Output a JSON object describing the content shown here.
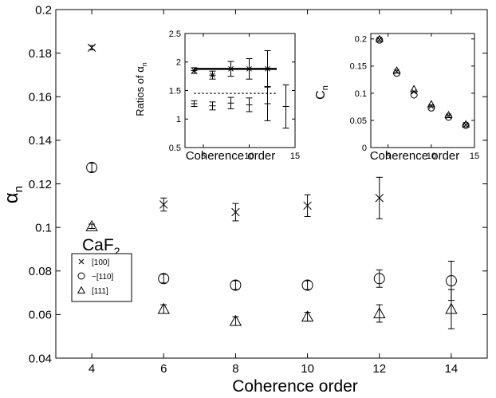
{
  "chart_data": [
    {
      "id": "main",
      "type": "scatter",
      "title": "",
      "xlabel": "Coherence order",
      "ylabel_main": "α",
      "ylabel_sub": "n",
      "xlim": [
        3,
        15
      ],
      "ylim": [
        0.04,
        0.2
      ],
      "xticks": [
        4,
        6,
        8,
        10,
        12,
        14
      ],
      "yticks": [
        0.04,
        0.06,
        0.08,
        0.1,
        0.12,
        0.14,
        0.16,
        0.18,
        0.2
      ],
      "ytick_labels": [
        "0.04",
        "0.06",
        "0.08",
        "0.1",
        "0.12",
        "0.14",
        "0.16",
        "0.18",
        "0.2"
      ],
      "series": [
        {
          "name": "[100]",
          "marker": "x",
          "points": [
            [
              4,
              0.1825,
              0.001
            ],
            [
              6,
              0.1105,
              0.003
            ],
            [
              8,
              0.107,
              0.004
            ],
            [
              10,
              0.11,
              0.005
            ],
            [
              12,
              0.1135,
              0.0095
            ]
          ]
        },
        {
          "name": "~[110]",
          "marker": "circle",
          "points": [
            [
              4,
              0.1275,
              0.002
            ],
            [
              6,
              0.0765,
              0.002
            ],
            [
              8,
              0.0735,
              0.002
            ],
            [
              10,
              0.0735,
              0.002
            ],
            [
              12,
              0.0765,
              0.004
            ],
            [
              14,
              0.0755,
              0.009
            ]
          ]
        },
        {
          "name": "[111]",
          "marker": "triangle",
          "points": [
            [
              4,
              0.1005,
              0.001
            ],
            [
              6,
              0.0625,
              0.002
            ],
            [
              8,
              0.057,
              0.002
            ],
            [
              10,
              0.059,
              0.002
            ],
            [
              12,
              0.0605,
              0.004
            ],
            [
              14,
              0.0625,
              0.009
            ]
          ]
        }
      ],
      "annotation_main": "CaF",
      "annotation_sub": "2",
      "legend_position": "left"
    },
    {
      "id": "inset1",
      "type": "scatter",
      "title": "",
      "xlabel": "Coherence order",
      "ylabel_main": "Ratios of α",
      "ylabel_sub": "n",
      "xlim": [
        3,
        15
      ],
      "ylim": [
        0.5,
        2.5
      ],
      "xticks": [
        5,
        10,
        15
      ],
      "yticks": [
        0.5,
        1,
        1.5,
        2,
        2.5
      ],
      "ytick_labels": [
        "0.5",
        "1",
        "1.5",
        "2",
        "2.5"
      ],
      "series": [
        {
          "marker": "star",
          "points": [
            [
              4,
              1.85,
              0.05
            ],
            [
              6,
              1.77,
              0.07
            ],
            [
              8,
              1.88,
              0.13
            ],
            [
              10,
              1.88,
              0.18
            ],
            [
              12,
              1.88,
              0.32
            ]
          ]
        },
        {
          "marker": "plus",
          "points": [
            [
              4,
              1.27,
              0.05
            ],
            [
              6,
              1.23,
              0.07
            ],
            [
              8,
              1.28,
              0.1
            ],
            [
              10,
              1.25,
              0.12
            ],
            [
              12,
              1.27,
              0.3
            ],
            [
              14,
              1.22,
              0.38
            ]
          ]
        }
      ],
      "hlines": [
        {
          "y": 1.88,
          "style": "solid",
          "x0": 4,
          "x1": 13
        },
        {
          "y": 1.45,
          "style": "dotted",
          "x0": 4,
          "x1": 13
        }
      ]
    },
    {
      "id": "inset2",
      "type": "scatter",
      "title": "",
      "xlabel": "Coherence order",
      "ylabel_main": "C",
      "ylabel_sub": "n",
      "xlim": [
        3,
        15
      ],
      "ylim": [
        0,
        0.21
      ],
      "xticks": [
        5,
        10,
        15
      ],
      "yticks": [
        0,
        0.05,
        0.1,
        0.15,
        0.2
      ],
      "ytick_labels": [
        "0",
        "0.05",
        "0.1",
        "0.15",
        "0.2"
      ],
      "series": [
        {
          "marker": "circle",
          "points": [
            [
              4,
              0.198
            ],
            [
              6,
              0.137
            ],
            [
              8,
              0.097
            ],
            [
              10,
              0.073
            ],
            [
              12,
              0.056
            ],
            [
              14,
              0.041
            ]
          ]
        },
        {
          "marker": "triangle",
          "points": [
            [
              4,
              0.2
            ],
            [
              6,
              0.142
            ],
            [
              8,
              0.108
            ],
            [
              10,
              0.08
            ],
            [
              12,
              0.06
            ],
            [
              14,
              0.043
            ]
          ]
        },
        {
          "marker": "x",
          "points": [
            [
              4,
              0.199
            ],
            [
              6,
              0.14
            ],
            [
              8,
              0.103
            ],
            [
              10,
              0.076
            ],
            [
              12,
              0.058
            ],
            [
              14,
              0.042
            ]
          ]
        }
      ]
    }
  ]
}
